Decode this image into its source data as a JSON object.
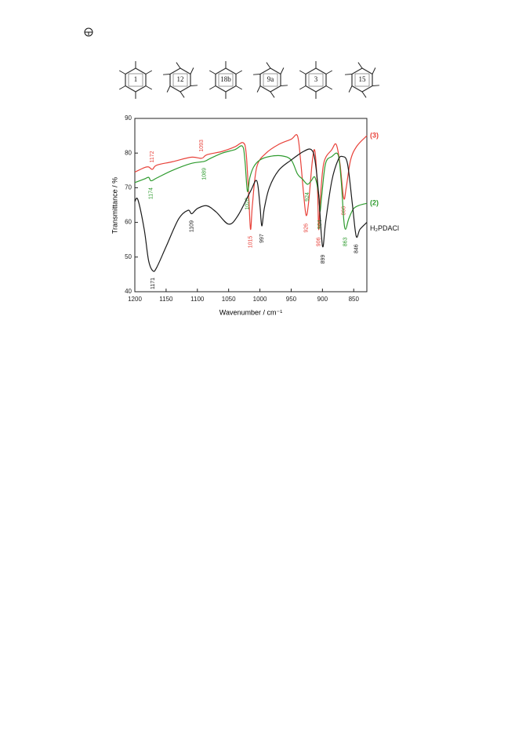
{
  "vibration_modes": [
    "1",
    "12",
    "18b",
    "9a",
    "3",
    "15"
  ],
  "chart_data": {
    "type": "line",
    "x_label": "Wavenumber / cm⁻¹",
    "y_label": "Transmittance / %",
    "xlim": [
      1200,
      829
    ],
    "ylim": [
      40,
      90
    ],
    "xticks": [
      1200,
      1150,
      1100,
      1050,
      1000,
      950,
      900,
      850
    ],
    "yticks": [
      40,
      50,
      60,
      70,
      80,
      90
    ],
    "series": [
      {
        "name": "(3)",
        "color": "#e8423a",
        "x": [
          1200,
          1185,
          1178,
          1172,
          1165,
          1140,
          1110,
          1093,
          1085,
          1060,
          1040,
          1027,
          1022,
          1018,
          1015,
          1012,
          1005,
          990,
          970,
          950,
          940,
          935,
          930,
          926,
          922,
          916,
          912,
          908,
          906,
          904,
          898,
          885,
          878,
          872,
          866,
          862,
          855,
          845,
          829
        ],
        "values": [
          74.5,
          75.8,
          76,
          75.3,
          76.5,
          77.5,
          78.8,
          78.5,
          79.5,
          80.5,
          81.8,
          83,
          80,
          68,
          58,
          65,
          76,
          80,
          82.5,
          84,
          85,
          78,
          68,
          62,
          66,
          78,
          80.5,
          70,
          58,
          65,
          77,
          81,
          82.5,
          77,
          67,
          70,
          78,
          82,
          85
        ],
        "peaks": [
          1172,
          1093,
          1015,
          926,
          906,
          866
        ]
      },
      {
        "name": "(2)",
        "color": "#2e9b2e",
        "x": [
          1200,
          1185,
          1178,
          1174,
          1165,
          1140,
          1110,
          1089,
          1080,
          1060,
          1040,
          1028,
          1024,
          1020,
          1016,
          1010,
          1000,
          985,
          965,
          950,
          940,
          932,
          924,
          918,
          912,
          906,
          904,
          901,
          895,
          885,
          875,
          870,
          866,
          863,
          858,
          850,
          840,
          829
        ],
        "values": [
          71.5,
          72.5,
          73,
          72,
          72.8,
          75,
          77,
          77.6,
          78.4,
          80,
          81,
          82,
          78,
          69,
          73,
          76,
          78,
          79,
          79.2,
          78,
          74,
          72.5,
          71,
          72,
          73,
          68,
          63,
          68,
          77,
          79,
          79.5,
          72,
          61,
          58,
          61,
          64,
          65,
          65.5
        ],
        "peaks": [
          1174,
          1089,
          1020,
          924,
          904,
          863
        ]
      },
      {
        "name": "H₂PDACl",
        "color": "#1a1a1a",
        "x": [
          1200,
          1195,
          1185,
          1178,
          1171,
          1165,
          1150,
          1130,
          1115,
          1109,
          1100,
          1085,
          1070,
          1050,
          1035,
          1015,
          1005,
          1000,
          997,
          993,
          985,
          970,
          950,
          930,
          918,
          912,
          906,
          902,
          899,
          895,
          885,
          875,
          868,
          860,
          852,
          846,
          840,
          829
        ],
        "values": [
          66,
          66.5,
          58,
          49,
          46,
          47,
          53,
          61,
          63.5,
          62.5,
          64,
          64.8,
          63,
          59.5,
          62,
          69,
          72,
          65,
          59,
          64,
          70,
          75,
          78,
          80.5,
          81,
          78,
          68,
          57,
          53,
          60,
          72,
          78,
          79,
          77,
          65,
          56,
          58,
          60
        ],
        "peaks": [
          1171,
          1109,
          997,
          899,
          846
        ]
      }
    ]
  }
}
